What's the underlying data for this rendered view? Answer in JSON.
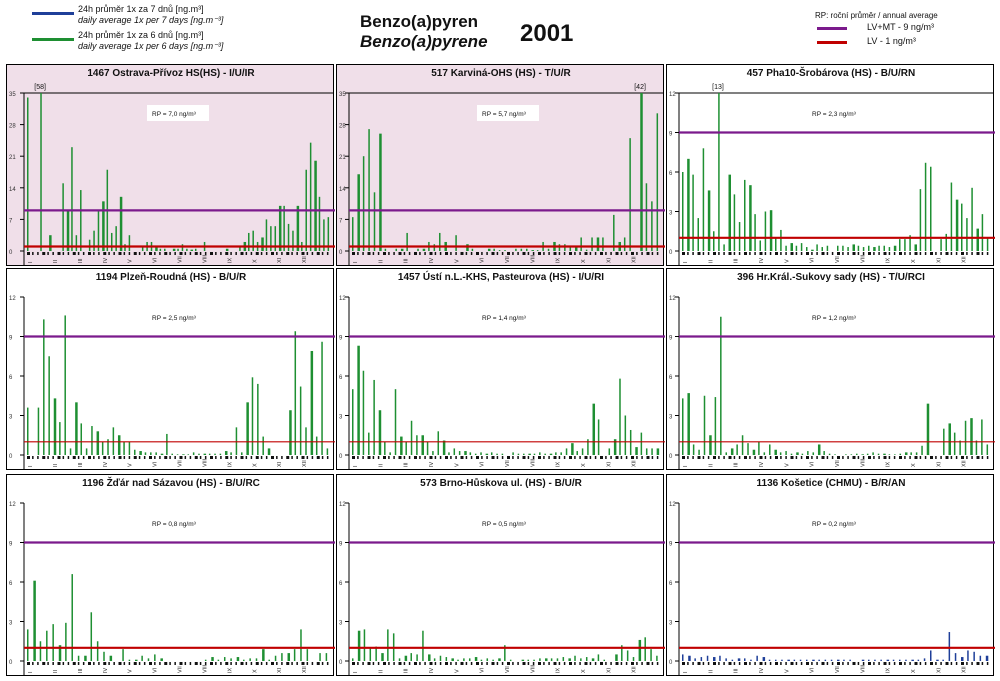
{
  "header": {
    "title_cz": "Benzo(a)pyren",
    "title_en": "Benzo(a)pyrene",
    "year": "2001"
  },
  "legend_left": [
    {
      "color": "#1f3f99",
      "line1": "24h průměr 1x za 7 dnů [ng.m³]",
      "line2": "daily average 1x per 7 days [ng.m⁻³]"
    },
    {
      "color": "#1e8f32",
      "line1": "24h průměr 1x za 6 dnů [ng.m³]",
      "line2": "daily average 1x per 6 days [ng.m⁻³]"
    }
  ],
  "legend_right": {
    "header": "RP:   roční průměr / annual average",
    "items": [
      {
        "color": "#7b1a8c",
        "label": "LV+MT - 9 ng/m³"
      },
      {
        "color": "#c00000",
        "label": "LV    - 1 ng/m³"
      }
    ]
  },
  "colors": {
    "bar_green": "#1e8f32",
    "bar_blue": "#1f3f99",
    "lv_mt_line": "#7b1a8c",
    "lv_line": "#c00000",
    "highlight_bg": "#f0dfe9"
  },
  "chart_data": [
    {
      "type": "bar",
      "title": "1467 Ostrava-Přívoz HS(HS) - I/U/IR",
      "highlight": true,
      "rp": "RP = 7,0 ng/m³",
      "ylim": [
        0,
        35
      ],
      "yticks": [
        "0",
        "7",
        "14",
        "21",
        "28",
        "35"
      ],
      "overflow_label": "[58]",
      "series_color": "green",
      "lv_mt": 9,
      "lv": 1,
      "values": [
        34,
        0,
        0,
        35,
        0,
        3.5,
        0,
        0,
        15,
        9,
        23,
        3.5,
        13.5,
        0,
        2.5,
        4.5,
        9,
        11,
        18,
        4,
        5.5,
        12,
        1.5,
        3.5,
        0,
        0,
        1,
        2,
        2,
        1,
        0.5,
        0.5,
        0,
        0.5,
        0.5,
        1.5,
        0.5,
        0.3,
        0.5,
        0,
        2,
        0,
        0,
        0,
        0,
        0.5,
        0,
        0,
        1,
        2,
        4,
        4.5,
        2,
        3,
        7,
        5.5,
        5.5,
        10,
        10,
        6,
        4.5,
        10,
        2,
        18,
        24,
        20,
        12,
        7,
        7.5
      ]
    },
    {
      "type": "bar",
      "title": "517 Karviná-OHS (HS) - T/U/R",
      "highlight": true,
      "rp": "RP = 5,7 ng/m³",
      "ylim": [
        0,
        35
      ],
      "yticks": [
        "0",
        "7",
        "14",
        "21",
        "28",
        "35"
      ],
      "overflow_label": "[42]",
      "series_color": "green",
      "lv_mt": 9,
      "lv": 1,
      "values": [
        7.5,
        17,
        21,
        27,
        13,
        26,
        0.5,
        0,
        0.5,
        0.5,
        4,
        0,
        0.5,
        0.5,
        2,
        1.5,
        4,
        2,
        0,
        3.5,
        0,
        1.5,
        0.5,
        0,
        0,
        0.5,
        0.5,
        0.2,
        0.2,
        0,
        0.5,
        0.5,
        0.5,
        0.2,
        0.2,
        2,
        0.5,
        2,
        1.5,
        1.5,
        1,
        1,
        3,
        0.3,
        3,
        3,
        3,
        0,
        8,
        2,
        3,
        25,
        0,
        35,
        15,
        11,
        30.5
      ]
    },
    {
      "type": "bar",
      "title": "457 Pha10-Šrobárova (HS) - B/U/RN",
      "highlight": false,
      "rp": "RP = 2,3 ng/m³",
      "ylim": [
        0,
        12
      ],
      "yticks": [
        "0",
        "3",
        "6",
        "9",
        "12"
      ],
      "overflow_label": "[13]",
      "series_color": "green",
      "lv_mt": 9,
      "lv": 1,
      "values": [
        6,
        7,
        5.8,
        2.5,
        7.8,
        4.6,
        1.5,
        12,
        0.5,
        5.8,
        4.3,
        2.2,
        5.4,
        5,
        2.8,
        0.8,
        3,
        3.1,
        1,
        1.6,
        0.4,
        0.6,
        0.4,
        0.6,
        0.3,
        0.1,
        0.5,
        0.3,
        0.4,
        0,
        0.4,
        0.4,
        0.3,
        0.5,
        0.4,
        0.3,
        0.4,
        0.3,
        0.4,
        0.4,
        0.3,
        0.4,
        0.9,
        0.9,
        1.2,
        0.5,
        4.7,
        6.7,
        6.4,
        0,
        0.9,
        1.3,
        5.2,
        3.9,
        3.6,
        2.5,
        4.8,
        1.7,
        2.8,
        1
      ]
    },
    {
      "type": "bar",
      "title": "1194 Plzeň-Roudná (HS) - B/U/R",
      "highlight": false,
      "rp": "RP = 2,5 ng/m³",
      "ylim": [
        0,
        12
      ],
      "yticks": [
        "0",
        "3",
        "6",
        "9",
        "12"
      ],
      "series_color": "green",
      "lv_mt": 9,
      "lv": 1,
      "values": [
        3.6,
        0,
        3.6,
        10.3,
        7.5,
        4.3,
        2.5,
        10.6,
        0.5,
        4,
        2.4,
        0.5,
        2.2,
        1.8,
        1,
        1.2,
        2.1,
        1.5,
        1,
        1,
        0.4,
        0.3,
        0.2,
        0.2,
        0.2,
        0.1,
        1.6,
        0.1,
        0.05,
        0.05,
        0.05,
        0.2,
        0.1,
        0.1,
        0.1,
        0.1,
        0.1,
        0.3,
        0.2,
        2.1,
        0.2,
        4,
        5.9,
        5.4,
        1.4,
        0.5,
        0,
        0,
        0,
        3.4,
        9.4,
        5.2,
        2.1,
        7.9,
        1.4,
        8.6,
        0.5
      ]
    },
    {
      "type": "bar",
      "title": "1457 Ústí n.L.-KHS, Pasteurova (HS) - I/U/RI",
      "highlight": false,
      "rp": "RP = 1,4 ng/m³",
      "ylim": [
        0,
        12
      ],
      "yticks": [
        "0",
        "3",
        "6",
        "9",
        "12"
      ],
      "series_color": "green",
      "lv_mt": 9,
      "lv": 1,
      "values": [
        5,
        8.3,
        6.4,
        1.7,
        5.7,
        3.4,
        1,
        0.2,
        5,
        1.4,
        1,
        2.6,
        1.5,
        1.5,
        1,
        0.3,
        1.8,
        1.1,
        0.2,
        0.5,
        0.3,
        0.3,
        0.2,
        0.1,
        0.2,
        0.1,
        0.2,
        0.1,
        0.1,
        0,
        0.2,
        0.1,
        0.1,
        0.1,
        0.1,
        0.2,
        0.1,
        0.1,
        0.2,
        0.2,
        0.5,
        0.9,
        0.3,
        0.5,
        1.2,
        3.9,
        2.7,
        0,
        0.5,
        1.2,
        5.8,
        3,
        1.9,
        0.6,
        1.7,
        0.5,
        0.5,
        0.5
      ]
    },
    {
      "type": "bar",
      "title": "396 Hr.Král.-Sukovy sady (HS) - T/U/RCI",
      "highlight": false,
      "rp": "RP = 1,2 ng/m³",
      "ylim": [
        0,
        12
      ],
      "yticks": [
        "0",
        "3",
        "6",
        "9",
        "12"
      ],
      "series_color": "green",
      "lv_mt": 9,
      "lv": 1,
      "values": [
        4.3,
        4.7,
        0.8,
        0.4,
        4.5,
        1.5,
        4.4,
        10.5,
        0.2,
        0.5,
        0.8,
        1.5,
        0.9,
        0.4,
        1,
        0.2,
        0.8,
        0.4,
        0.2,
        0.3,
        0.1,
        0.2,
        0.1,
        0.3,
        0.2,
        0.8,
        0.3,
        0.1,
        0.05,
        0,
        0.05,
        0.05,
        0.1,
        0.05,
        0.1,
        0.2,
        0.1,
        0.1,
        0.05,
        0.05,
        0.1,
        0.2,
        0.2,
        0.2,
        0.7,
        3.9,
        0,
        0,
        2,
        2.4,
        1.7,
        1.1,
        2.6,
        2.8,
        1.1,
        2.7,
        0.8
      ]
    },
    {
      "type": "bar",
      "title": "1196 Žďár nad Sázavou (HS) - B/U/RC",
      "highlight": false,
      "rp": "RP = 0,8 ng/m³",
      "ylim": [
        0,
        12
      ],
      "yticks": [
        "0",
        "3",
        "6",
        "9",
        "12"
      ],
      "series_color": "green",
      "lv_mt": 9,
      "lv": 1,
      "values": [
        2.4,
        6.1,
        1.5,
        2.3,
        2.8,
        1.2,
        2.9,
        6.6,
        0.4,
        0.4,
        3.7,
        1.5,
        0.7,
        0.4,
        0,
        0.9,
        0.1,
        0.1,
        0.4,
        0.2,
        0.5,
        0.2,
        0,
        0,
        0,
        0,
        0,
        0,
        0.1,
        0.3,
        0.1,
        0.3,
        0.2,
        0.3,
        0.1,
        0.2,
        0.2,
        0.9,
        0.1,
        0.4,
        0.6,
        0.6,
        0.9,
        2.4,
        0.9,
        0,
        0.6,
        0.6
      ]
    },
    {
      "type": "bar",
      "title": "573 Brno-Hůskova ul. (HS) - B/U/R",
      "highlight": false,
      "rp": "RP = 0,5 ng/m³",
      "ylim": [
        0,
        12
      ],
      "yticks": [
        "0",
        "3",
        "6",
        "9",
        "12"
      ],
      "series_color": "green",
      "lv_mt": 9,
      "lv": 1,
      "values": [
        0.2,
        2.3,
        2.4,
        1,
        1.1,
        0.6,
        2.4,
        2.1,
        0.2,
        0.4,
        0.6,
        0.5,
        2.3,
        0.5,
        0.2,
        0.4,
        0.3,
        0.2,
        0.1,
        0.2,
        0.2,
        0.3,
        0.1,
        0.2,
        0.1,
        0.2,
        1.2,
        0.1,
        0,
        0.1,
        0.1,
        0.1,
        0.2,
        0.2,
        0.2,
        0.2,
        0.3,
        0.2,
        0.4,
        0.2,
        0.3,
        0.2,
        0.5,
        0.1,
        0,
        0.5,
        1.2,
        0.8,
        0.3,
        1.6,
        1.8,
        0.9,
        0.4
      ]
    },
    {
      "type": "bar",
      "title": "1136 Košetice (CHMU) - B/R/AN",
      "highlight": false,
      "rp": "RP = 0,2 ng/m³",
      "ylim": [
        0,
        12
      ],
      "yticks": [
        "0",
        "3",
        "6",
        "9",
        "12"
      ],
      "series_color": "blue",
      "lv_mt": 9,
      "lv": 1,
      "values": [
        0.5,
        0.4,
        0.2,
        0.3,
        0.4,
        0.3,
        0.4,
        0.2,
        0.1,
        0.2,
        0.2,
        0.1,
        0.4,
        0.3,
        0.1,
        0.1,
        0.1,
        0.1,
        0.1,
        0.1,
        0.1,
        0.1,
        0.1,
        0.1,
        0.1,
        0.1,
        0.1,
        0.1,
        0,
        0.1,
        0.1,
        0.1,
        0.1,
        0.1,
        0.1,
        0.1,
        0.1,
        0.1,
        0.1,
        0.2,
        0.8,
        0.1,
        0.1,
        2.2,
        0.6,
        0.3,
        0.8,
        0.7,
        0.4,
        0.4
      ]
    }
  ],
  "month_labels": [
    "I",
    "II",
    "III",
    "IV",
    "V",
    "VI",
    "VII",
    "VIII",
    "IX",
    "X",
    "XI",
    "XII"
  ]
}
